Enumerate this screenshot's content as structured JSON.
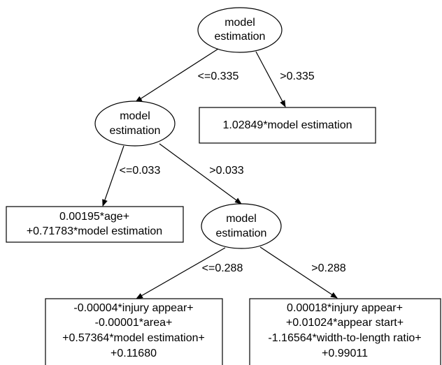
{
  "nodes": [
    {
      "label": [
        "model",
        "estimation"
      ]
    },
    {
      "label": [
        "model",
        "estimation"
      ]
    },
    {
      "label": [
        "1.02849*model estimation"
      ]
    },
    {
      "label": [
        "0.00195*age+",
        "+0.71783*model estimation"
      ]
    },
    {
      "label": [
        "model",
        "estimation"
      ]
    },
    {
      "label": [
        "-0.00004*injury appear+",
        "-0.00001*area+",
        "+0.57364*model estimation+",
        "+0.11680"
      ]
    },
    {
      "label": [
        "0.00018*injury appear+",
        "+0.01024*appear start+",
        "-1.16564*width-to-length ratio+",
        "+0.99011"
      ]
    }
  ],
  "edges": [
    {
      "label": "<=0.335"
    },
    {
      "label": ">0.335"
    },
    {
      "label": "<=0.033"
    },
    {
      "label": ">0.033"
    },
    {
      "label": "<=0.288"
    },
    {
      "label": ">0.288"
    }
  ]
}
